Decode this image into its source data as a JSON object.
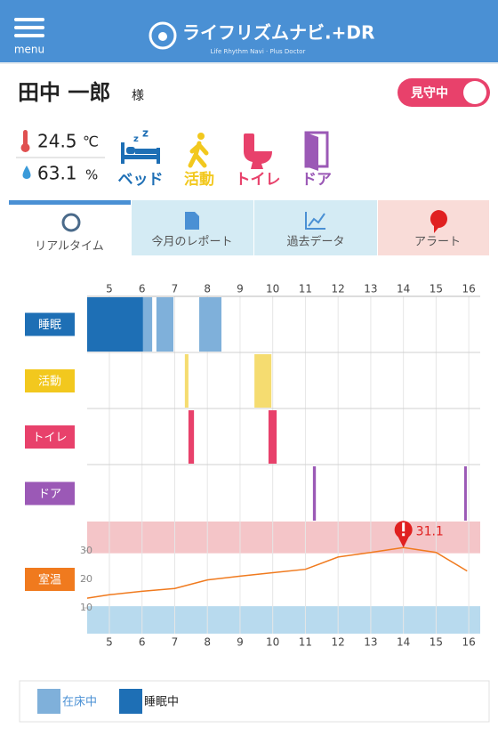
{
  "header": {
    "menu": "menu",
    "logo": "ライフリズムナビ.+DR",
    "tagline": "Life Rhythm Navi · Plus Doctor"
  },
  "user": {
    "name": "田中 一郎",
    "honorific": "様",
    "status": "見守中"
  },
  "environment": {
    "temperature": {
      "value": 24.5,
      "unit": "℃"
    },
    "humidity": {
      "value": 63.1,
      "unit": "%"
    }
  },
  "sensors": [
    "ベッド",
    "活動",
    "トイレ",
    "ドア"
  ],
  "tabs": [
    "リアルタイム",
    "今月のレポート",
    "過去データ",
    "アラート"
  ],
  "timeline": {
    "xlim": [
      4.32,
      16.35
    ],
    "xticks": [
      5,
      6,
      7,
      8,
      9,
      10,
      11,
      12,
      13,
      14,
      15,
      16
    ],
    "rows": [
      {
        "label": "睡眠",
        "color": "#1e6fb5",
        "series": [
          {
            "name": "在床中",
            "color": "#7fb0da",
            "spans": [
              [
                6.03,
                6.31
              ],
              [
                6.44,
                6.96
              ],
              [
                7.75,
                8.43
              ]
            ]
          },
          {
            "name": "睡眠中",
            "color": "#1e6fb5",
            "spans": [
              [
                4.32,
                6.03
              ]
            ]
          }
        ]
      },
      {
        "label": "活動",
        "color": "#f2c81e",
        "bar_color": "#f5dc70",
        "spans": [
          [
            7.31,
            7.42
          ],
          [
            9.44,
            9.96
          ]
        ]
      },
      {
        "label": "トイレ",
        "color": "#e8416b",
        "spans": [
          [
            7.42,
            7.59
          ],
          [
            9.87,
            10.12
          ]
        ]
      },
      {
        "label": "ドア",
        "color": "#9b59b6",
        "spans": [
          [
            11.23,
            11.32
          ],
          [
            15.86,
            15.94
          ]
        ]
      }
    ],
    "temperature": {
      "label": "室温",
      "color": "#f07a1e",
      "ylim": [
        1,
        40.2
      ],
      "yticks": [
        10,
        20,
        30
      ],
      "bands": [
        {
          "from": 29.1,
          "to": 40.2,
          "color": "#f4c5c8"
        },
        {
          "from": 1,
          "to": 10.6,
          "color": "#b8daee"
        }
      ],
      "x": [
        4.32,
        5,
        6,
        7,
        8,
        9,
        10,
        11,
        12,
        13,
        14,
        15,
        15.95
      ],
      "values": [
        13.4,
        14.6,
        15.8,
        16.8,
        19.8,
        21.1,
        22.3,
        23.5,
        27.8,
        29.4,
        31.1,
        29.4,
        22.9
      ]
    }
  }
}
